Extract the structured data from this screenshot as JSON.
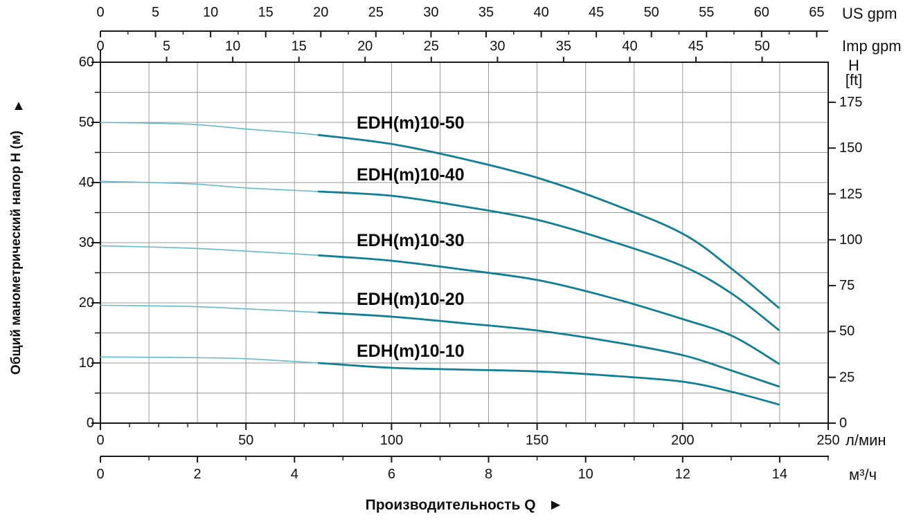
{
  "labels": {
    "us_gpm": "US gpm",
    "imp_gpm": "Imp gpm",
    "h": "H",
    "ft": "[ft]",
    "lmin": "л/мин",
    "m3h": "м³/ч",
    "y_left_title": "Общий манометрический напор H (м)",
    "arrow_up": "▲",
    "bottom_title": "Производительность Q",
    "arrow_right": "►"
  },
  "colors": {
    "curve": "#0e7f94",
    "curve_light": "#64bacb",
    "grid": "#999999",
    "axis": "#1a1a1a",
    "text": "#111111",
    "background": "#ffffff"
  },
  "chart_data": {
    "type": "line",
    "xlabel": "Производительность Q",
    "ylabel_left": "Общий манометрический напор H (м)",
    "ylabel_right": "H [ft]",
    "x_units": [
      "US gpm",
      "Imp gpm",
      "л/мин",
      "м³/ч"
    ],
    "grid": true,
    "axes": {
      "us_gpm": {
        "major": [
          0,
          5,
          10,
          15,
          20,
          25,
          30,
          35,
          40,
          45,
          50,
          55,
          60,
          65
        ],
        "minor_step": 2.5,
        "lmin_per_unit": 3.78541
      },
      "imp_gpm": {
        "major": [
          0,
          5,
          10,
          15,
          20,
          25,
          30,
          35,
          40,
          45,
          50
        ],
        "lmin_per_unit": 4.54609
      },
      "head_m": {
        "major": [
          0,
          10,
          20,
          30,
          40,
          50,
          60
        ],
        "minor": [
          5,
          15,
          25,
          35,
          45,
          55
        ],
        "range": [
          0,
          60
        ]
      },
      "head_ft": {
        "major": [
          0,
          25,
          50,
          75,
          100,
          125,
          150,
          175
        ],
        "m_per_ft": 0.3048
      },
      "flow_lmin": {
        "major": [
          0,
          50,
          100,
          150,
          200,
          250
        ],
        "minor_step": 10,
        "range": [
          0,
          250
        ]
      },
      "flow_m3h": {
        "major": [
          0,
          2,
          4,
          6,
          8,
          10,
          12,
          14
        ],
        "minor": [
          1,
          3,
          5,
          7,
          9,
          11,
          13,
          15
        ],
        "range": [
          0,
          15
        ]
      }
    },
    "series": [
      {
        "label": "EDH(m)10-50",
        "label_q": 88,
        "label_h": 49.6,
        "points": [
          [
            0,
            50.0
          ],
          [
            30,
            49.7
          ],
          [
            50,
            48.9
          ],
          [
            75,
            47.9
          ],
          [
            100,
            46.4
          ],
          [
            125,
            43.9
          ],
          [
            150,
            40.8
          ],
          [
            175,
            36.6
          ],
          [
            200,
            31.5
          ],
          [
            217,
            25.6
          ],
          [
            233,
            19.2
          ]
        ]
      },
      {
        "label": "EDH(m)10-40",
        "label_q": 88,
        "label_h": 40.9,
        "points": [
          [
            0,
            40.2
          ],
          [
            30,
            39.8
          ],
          [
            50,
            39.1
          ],
          [
            75,
            38.5
          ],
          [
            100,
            37.8
          ],
          [
            125,
            36.0
          ],
          [
            150,
            33.8
          ],
          [
            175,
            30.3
          ],
          [
            200,
            26.1
          ],
          [
            217,
            21.5
          ],
          [
            233,
            15.5
          ]
        ]
      },
      {
        "label": "EDH(m)10-30",
        "label_q": 88,
        "label_h": 30.0,
        "points": [
          [
            0,
            29.5
          ],
          [
            30,
            29.1
          ],
          [
            50,
            28.6
          ],
          [
            75,
            27.9
          ],
          [
            100,
            27.0
          ],
          [
            125,
            25.5
          ],
          [
            150,
            23.8
          ],
          [
            175,
            20.9
          ],
          [
            200,
            17.3
          ],
          [
            217,
            14.5
          ],
          [
            233,
            9.9
          ]
        ]
      },
      {
        "label": "EDH(m)10-20",
        "label_q": 88,
        "label_h": 20.2,
        "points": [
          [
            0,
            19.6
          ],
          [
            30,
            19.4
          ],
          [
            50,
            19.0
          ],
          [
            75,
            18.4
          ],
          [
            100,
            17.7
          ],
          [
            125,
            16.6
          ],
          [
            150,
            15.4
          ],
          [
            175,
            13.6
          ],
          [
            200,
            11.3
          ],
          [
            217,
            8.7
          ],
          [
            233,
            6.1
          ]
        ]
      },
      {
        "label": "EDH(m)10-10",
        "label_q": 88,
        "label_h": 11.6,
        "points": [
          [
            0,
            11.0
          ],
          [
            30,
            10.9
          ],
          [
            50,
            10.7
          ],
          [
            75,
            10.0
          ],
          [
            100,
            9.2
          ],
          [
            125,
            8.9
          ],
          [
            150,
            8.6
          ],
          [
            175,
            7.9
          ],
          [
            200,
            6.9
          ],
          [
            217,
            5.2
          ],
          [
            233,
            3.1
          ]
        ]
      }
    ]
  }
}
